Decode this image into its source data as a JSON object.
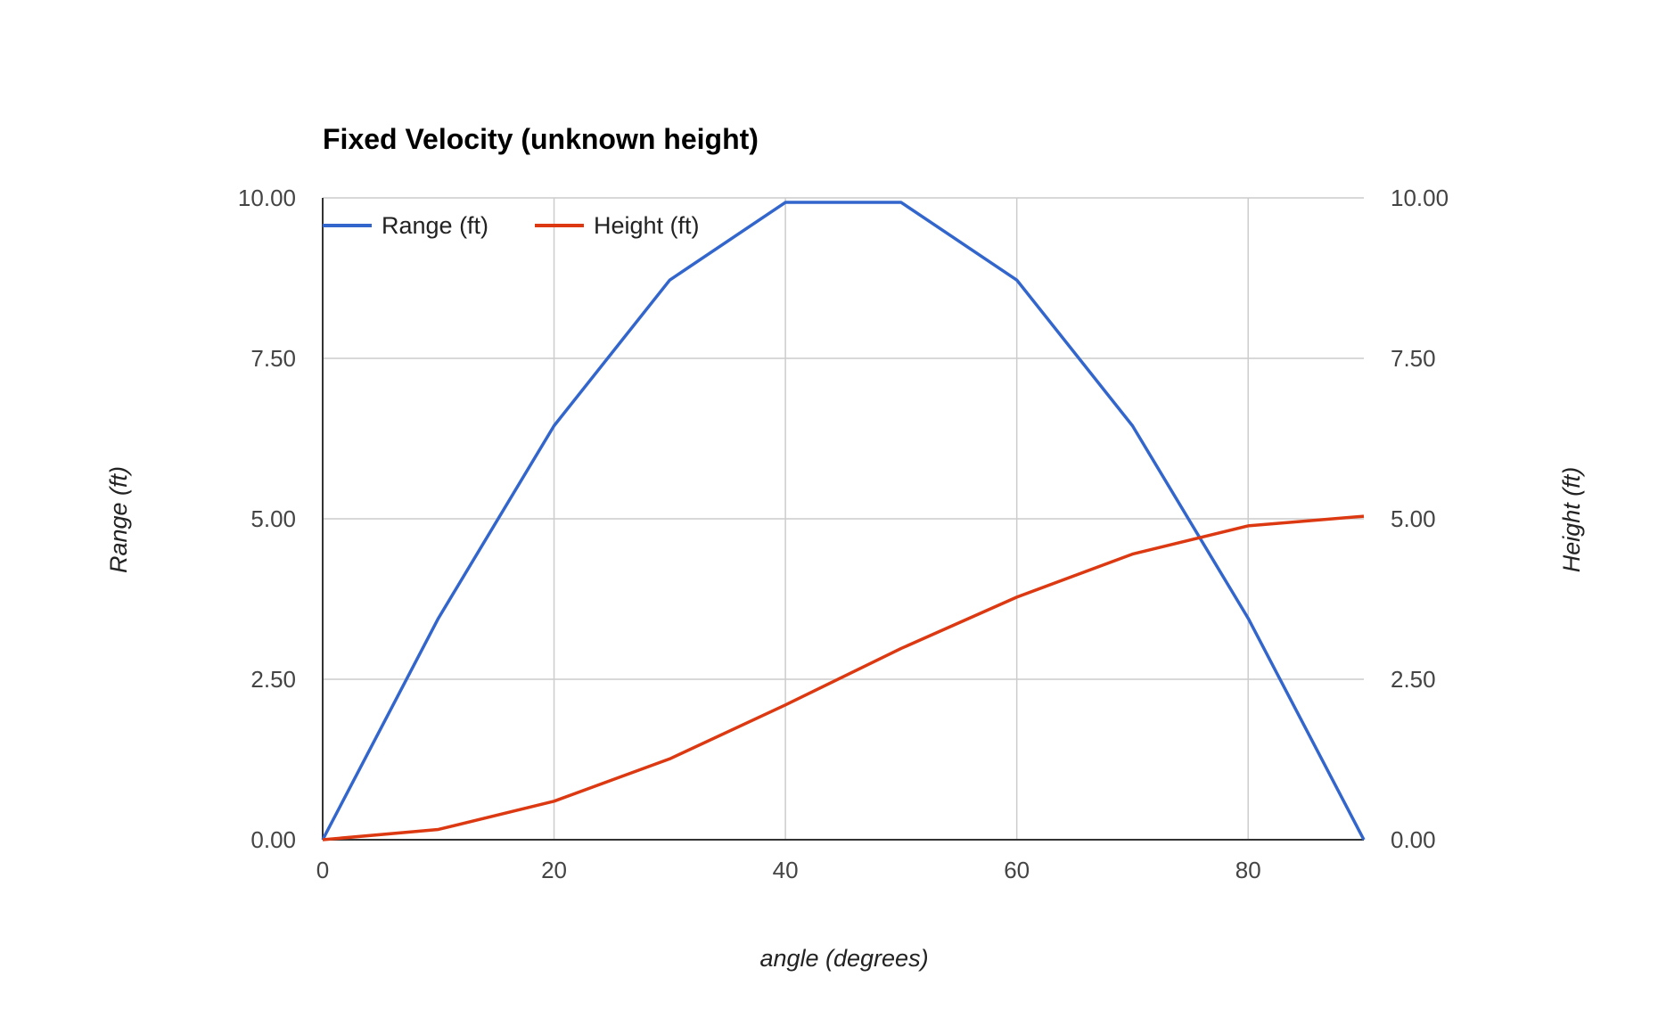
{
  "chart_data": {
    "type": "line",
    "title": "Fixed Velocity (unknown height)",
    "xlabel": "angle (degrees)",
    "ylabel_left": "Range (ft)",
    "ylabel_right": "Height (ft)",
    "x": [
      0,
      10,
      20,
      30,
      40,
      50,
      60,
      70,
      80,
      90
    ],
    "xlim": [
      0,
      90
    ],
    "xticks": [
      "0",
      "20",
      "40",
      "60",
      "80"
    ],
    "ylim_left": [
      0,
      10
    ],
    "ylim_right": [
      0,
      10
    ],
    "yticks_left": [
      "0.00",
      "2.50",
      "5.00",
      "7.50",
      "10.00"
    ],
    "yticks_right": [
      "0.00",
      "2.50",
      "5.00",
      "7.50",
      "10.00"
    ],
    "grid": true,
    "legend_position": "top-left",
    "series": [
      {
        "name": "Range (ft)",
        "axis": "left",
        "color": "#3366cc",
        "values": [
          0,
          3.45,
          6.45,
          8.72,
          9.93,
          9.93,
          8.72,
          6.45,
          3.45,
          0
        ]
      },
      {
        "name": "Height (ft)",
        "axis": "right",
        "color": "#dc3912",
        "values": [
          0,
          0.16,
          0.6,
          1.26,
          2.1,
          2.98,
          3.78,
          4.45,
          4.89,
          5.04
        ]
      }
    ]
  }
}
